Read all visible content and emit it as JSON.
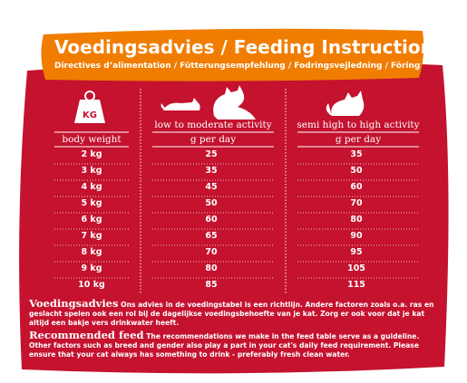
{
  "header": {
    "title": "Voedingsadvies / Feeding Instruction",
    "subtitle": "Directives d’alimentation / Fütterungsempfehlung / Fodringsvejledning / Föring"
  },
  "table": {
    "icon_label": "KG",
    "columns": [
      "body weight",
      "low to moderate activity",
      "semi high to high activity"
    ],
    "units": [
      "g per day",
      "g per day"
    ],
    "rows": [
      [
        "2 kg",
        "25",
        "35"
      ],
      [
        "3 kg",
        "35",
        "50"
      ],
      [
        "4 kg",
        "45",
        "60"
      ],
      [
        "5 kg",
        "50",
        "70"
      ],
      [
        "6 kg",
        "60",
        "80"
      ],
      [
        "7 kg",
        "65",
        "90"
      ],
      [
        "8 kg",
        "70",
        "95"
      ],
      [
        "9 kg",
        "80",
        "105"
      ],
      [
        "10 kg",
        "85",
        "115"
      ]
    ]
  },
  "notes": [
    {
      "heading": "Voedingsadvies",
      "text": "Ons advies in de voedingstabel is een richtlijn. Andere factoren zoals o.a. ras en geslacht spelen ook een rol bij de dagelijkse voedingsbehoefte van je kat. Zorg er ook voor dat je kat altijd een bakje vers drinkwater heeft."
    },
    {
      "heading": "Recommended feed",
      "text": "The recommendations we make in the feed table serve as a guideline. Other factors such as breed and gender also play a part in your cat's daily feed requirement. Please ensure that your cat always has something to drink - preferably fresh clean water."
    }
  ]
}
